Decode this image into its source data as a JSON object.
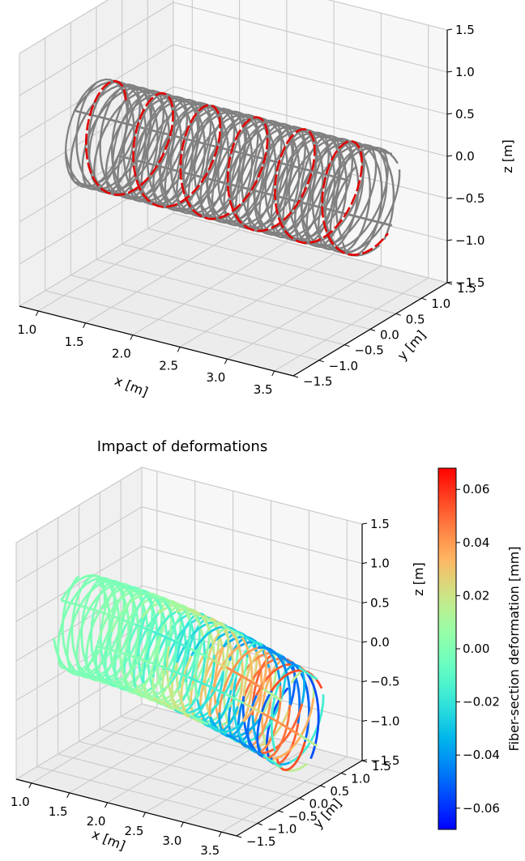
{
  "chart_data": [
    {
      "type": "3d-line",
      "title": "",
      "xlabel": "x [m]",
      "ylabel": "y [m]",
      "zlabel": "z [m]",
      "xticks": [
        "1.0",
        "1.5",
        "2.0",
        "2.5",
        "3.0",
        "3.5"
      ],
      "yticks": [
        "−1.5",
        "−1.0",
        "−0.5",
        "0.0",
        "0.5",
        "1.0",
        "1.5"
      ],
      "zticks": [
        "−1.5",
        "−1.0",
        "−0.5",
        "0.0",
        "0.5",
        "1.0",
        "1.5"
      ],
      "xlim": [
        0.8,
        3.7
      ],
      "ylim": [
        -1.5,
        1.5
      ],
      "zlim": [
        -1.5,
        1.5
      ],
      "grid": true,
      "structure": {
        "x_range": [
          0.8,
          3.7
        ],
        "radius": 0.6,
        "helix_pitch": 0.5,
        "lattice_color": "#808080",
        "highlight_fiber_color": "#e00000"
      }
    },
    {
      "type": "3d-line",
      "title": "Impact of deformations",
      "xlabel": "x [m]",
      "ylabel": "y [m]",
      "zlabel": "z [m]",
      "xticks": [
        "1.0",
        "1.5",
        "2.0",
        "2.5",
        "3.0",
        "3.5"
      ],
      "yticks": [
        "−1.5",
        "−1.0",
        "−0.5",
        "0.0",
        "0.5",
        "1.0",
        "1.5"
      ],
      "zticks": [
        "−1.5",
        "−1.0",
        "−0.5",
        "0.0",
        "0.5",
        "1.0",
        "1.5"
      ],
      "xlim": [
        0.8,
        3.7
      ],
      "ylim": [
        -1.5,
        1.5
      ],
      "zlim": [
        -1.5,
        1.5
      ],
      "grid": true,
      "colorbar": {
        "label": "Fiber-section deformation [mm]",
        "range": [
          -0.068,
          0.068
        ],
        "ticks": [
          "0.06",
          "0.04",
          "0.02",
          "0.00",
          "−0.02",
          "−0.04",
          "−0.06"
        ],
        "tick_values": [
          0.06,
          0.04,
          0.02,
          0.0,
          -0.02,
          -0.04,
          -0.06
        ],
        "colormap": "rainbow"
      },
      "structure": {
        "x_range": [
          0.8,
          3.7
        ],
        "radius": 0.6,
        "helix_pitch": 0.5
      }
    }
  ]
}
